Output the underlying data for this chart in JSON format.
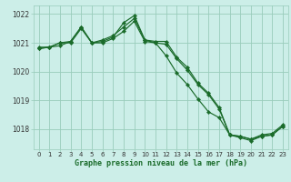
{
  "bg_color": "#cceee8",
  "grid_color": "#99ccbb",
  "line_color": "#1a6b2a",
  "xlabel": "Graphe pression niveau de la mer (hPa)",
  "ylim": [
    1017.3,
    1022.3
  ],
  "xlim": [
    -0.5,
    23.5
  ],
  "yticks": [
    1018,
    1019,
    1020,
    1021,
    1022
  ],
  "xticks": [
    0,
    1,
    2,
    3,
    4,
    5,
    6,
    7,
    8,
    9,
    10,
    11,
    12,
    13,
    14,
    15,
    16,
    17,
    18,
    19,
    20,
    21,
    22,
    23
  ],
  "series1": [
    1020.8,
    1020.85,
    1020.9,
    1021.05,
    1021.55,
    1021.0,
    1021.1,
    1021.25,
    1021.55,
    1021.85,
    1021.1,
    1021.05,
    1021.05,
    1020.5,
    1020.15,
    1019.6,
    1019.25,
    1018.75,
    1017.8,
    1017.75,
    1017.65,
    1017.8,
    1017.85,
    1018.15
  ],
  "series2": [
    1020.85,
    1020.85,
    1021.0,
    1021.05,
    1021.55,
    1021.0,
    1021.05,
    1021.2,
    1021.7,
    1021.95,
    1021.1,
    1021.0,
    1020.55,
    1019.95,
    1019.55,
    1019.05,
    1018.6,
    1018.4,
    1017.8,
    1017.75,
    1017.65,
    1017.75,
    1017.8,
    1018.1
  ],
  "series3": [
    1020.8,
    1020.85,
    1021.0,
    1021.0,
    1021.5,
    1021.0,
    1021.0,
    1021.15,
    1021.4,
    1021.75,
    1021.05,
    1021.0,
    1020.95,
    1020.45,
    1020.05,
    1019.55,
    1019.2,
    1018.7,
    1017.8,
    1017.7,
    1017.6,
    1017.75,
    1017.8,
    1018.1
  ]
}
